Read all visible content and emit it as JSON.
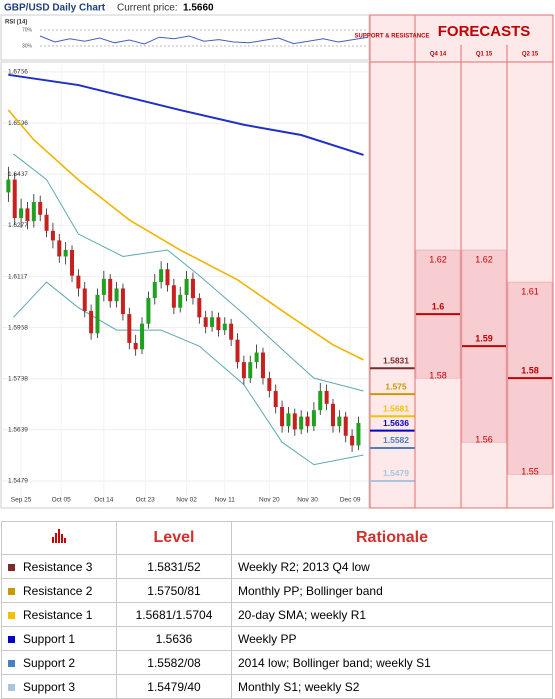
{
  "header": {
    "title": "GBP/USD Daily Chart",
    "price_label": "Current price:",
    "price": "1.5660"
  },
  "chart_data": {
    "type": "candlestick",
    "ylim": [
      1.5404,
      1.6787
    ],
    "yticks": [
      1.6756,
      1.6596,
      1.6437,
      1.6277,
      1.6117,
      1.5958,
      1.5798,
      1.5639,
      1.5479
    ],
    "xlim": [
      -1,
      56.5
    ],
    "xticks": [
      {
        "value": 2,
        "label": "Sep 25"
      },
      {
        "value": 8.3,
        "label": "Oct 05"
      },
      {
        "value": 15,
        "label": "Oct 14"
      },
      {
        "value": 21.5,
        "label": "Oct 23"
      },
      {
        "value": 28,
        "label": "Nov 02"
      },
      {
        "value": 34,
        "label": "Nov 11"
      },
      {
        "value": 41,
        "label": "Nov 20"
      },
      {
        "value": 47,
        "label": "Nov 30"
      },
      {
        "value": 53.7,
        "label": "Dec 09"
      }
    ],
    "up_color": "#1fa01f",
    "down_color": "#c8201e",
    "open": [
      1.638,
      1.642,
      1.63,
      1.633,
      1.629,
      1.635,
      1.631,
      1.626,
      1.623,
      1.618,
      1.62,
      1.612,
      1.608,
      1.601,
      1.594,
      1.606,
      1.611,
      1.604,
      1.608,
      1.6,
      1.591,
      1.589,
      1.597,
      1.605,
      1.61,
      1.614,
      1.609,
      1.602,
      1.606,
      1.611,
      1.605,
      1.599,
      1.596,
      1.599,
      1.595,
      1.597,
      1.592,
      1.585,
      1.58,
      1.585,
      1.588,
      1.58,
      1.576,
      1.571,
      1.565,
      1.569,
      1.564,
      1.568,
      1.565,
      1.57,
      1.576,
      1.572,
      1.565,
      1.568,
      1.562,
      1.559
    ],
    "high": [
      1.646,
      1.644,
      1.636,
      1.635,
      1.6375,
      1.637,
      1.633,
      1.6285,
      1.625,
      1.6225,
      1.6215,
      1.614,
      1.61,
      1.603,
      1.608,
      1.6135,
      1.6125,
      1.61,
      1.6095,
      1.602,
      1.5935,
      1.599,
      1.607,
      1.6125,
      1.6165,
      1.616,
      1.611,
      1.6085,
      1.6135,
      1.613,
      1.6065,
      1.601,
      1.601,
      1.6005,
      1.599,
      1.5985,
      1.594,
      1.587,
      1.587,
      1.5905,
      1.5895,
      1.582,
      1.578,
      1.573,
      1.571,
      1.5705,
      1.57,
      1.5695,
      1.5725,
      1.5785,
      1.578,
      1.5735,
      1.57,
      1.5695,
      1.564,
      1.568
    ],
    "low": [
      1.635,
      1.628,
      1.627,
      1.6265,
      1.627,
      1.629,
      1.624,
      1.6205,
      1.616,
      1.6155,
      1.61,
      1.6055,
      1.599,
      1.592,
      1.5925,
      1.604,
      1.602,
      1.602,
      1.598,
      1.589,
      1.587,
      1.5875,
      1.5955,
      1.603,
      1.608,
      1.607,
      1.6,
      1.6005,
      1.604,
      1.603,
      1.597,
      1.594,
      1.5945,
      1.593,
      1.5935,
      1.59,
      1.583,
      1.578,
      1.5785,
      1.583,
      1.578,
      1.574,
      1.569,
      1.563,
      1.563,
      1.562,
      1.5625,
      1.563,
      1.5635,
      1.5685,
      1.57,
      1.563,
      1.563,
      1.56,
      1.557,
      1.5575
    ],
    "close": [
      1.642,
      1.63,
      1.633,
      1.629,
      1.635,
      1.631,
      1.626,
      1.623,
      1.618,
      1.62,
      1.612,
      1.608,
      1.601,
      1.594,
      1.606,
      1.611,
      1.604,
      1.608,
      1.6,
      1.591,
      1.589,
      1.597,
      1.605,
      1.61,
      1.614,
      1.609,
      1.602,
      1.606,
      1.611,
      1.605,
      1.599,
      1.596,
      1.599,
      1.595,
      1.597,
      1.592,
      1.585,
      1.58,
      1.585,
      1.588,
      1.58,
      1.576,
      1.571,
      1.565,
      1.569,
      1.564,
      1.568,
      1.565,
      1.57,
      1.576,
      1.572,
      1.565,
      1.568,
      1.562,
      1.559,
      1.566
    ],
    "lines": [
      {
        "color": "#1f2fc8",
        "width": 2,
        "x": [
          0,
          11,
          27,
          37,
          46,
          55.8
        ],
        "values": [
          1.6747,
          1.6715,
          1.6637,
          1.6591,
          1.6559,
          1.6497
        ]
      },
      {
        "color": "#f0b400",
        "width": 1.6,
        "x": [
          0,
          4,
          11,
          19,
          27,
          36,
          44,
          51,
          55.8
        ],
        "values": [
          1.6637,
          1.6544,
          1.6419,
          1.6294,
          1.62,
          1.6107,
          1.5997,
          1.5904,
          1.5857
        ]
      },
      {
        "color": "#5fa8b0",
        "width": 1,
        "x": [
          0.8,
          6,
          11,
          18,
          25,
          30,
          37,
          43,
          48,
          55.8
        ],
        "values": [
          1.65,
          1.642,
          1.625,
          1.618,
          1.62,
          1.612,
          1.6,
          1.589,
          1.58,
          1.576
        ]
      },
      {
        "color": "#5fa8b0",
        "width": 1,
        "x": [
          0.8,
          6,
          11,
          17,
          24,
          30,
          37,
          43,
          48,
          55.8
        ],
        "values": [
          1.599,
          1.61,
          1.602,
          1.595,
          1.595,
          1.59,
          1.578,
          1.56,
          1.553,
          1.556
        ]
      }
    ],
    "rsi": {
      "label": "RSI (14)",
      "ylim": [
        0,
        100
      ],
      "yticks": [
        {
          "value": 70,
          "label": "70%"
        },
        {
          "value": 30,
          "label": "30%"
        }
      ],
      "values": [
        55,
        40,
        48,
        42,
        50,
        38,
        45,
        35,
        52,
        48,
        55,
        42,
        46,
        40,
        38,
        44,
        50,
        36,
        42,
        48,
        40,
        46,
        52
      ]
    },
    "levels_title": "SUPPORT & RESISTANCE",
    "levels": [
      {
        "value": 1.5831,
        "color": "#7b2b2b"
      },
      {
        "value": 1.575,
        "color": "#c89a00"
      },
      {
        "value": 1.5681,
        "color": "#f2c200"
      },
      {
        "value": 1.5636,
        "color": "#0000c8"
      },
      {
        "value": 1.5582,
        "color": "#4a7fc1"
      },
      {
        "value": 1.5479,
        "color": "#a9c4e0"
      }
    ],
    "forecasts_title": "FORECASTS",
    "forecasts": [
      {
        "period": "Q4 14",
        "high": 1.62,
        "mid": 1.6,
        "low": 1.58
      },
      {
        "period": "Q1 15",
        "high": 1.62,
        "mid": 1.59,
        "low": 1.56
      },
      {
        "period": "Q2 15",
        "high": 1.61,
        "mid": 1.58,
        "low": 1.55
      }
    ]
  },
  "table": {
    "headers": [
      "Level",
      "Rationale"
    ],
    "rows": [
      [
        "Resistance 3",
        "1.5831/52",
        "Weekly R2; 2013 Q4 low"
      ],
      [
        "Resistance 2",
        "1.5750/81",
        "Monthly PP; Bollinger band"
      ],
      [
        "Resistance 1",
        "1.5681/1.5704",
        "20-day SMA; weekly R1"
      ],
      [
        "Support 1",
        "1.5636",
        "Weekly PP"
      ],
      [
        "Support 2",
        "1.5582/08",
        "2014 low; Bollinger band; weekly S1"
      ],
      [
        "Support 3",
        "1.5479/40",
        "Monthly S1; weekly S2"
      ]
    ]
  }
}
